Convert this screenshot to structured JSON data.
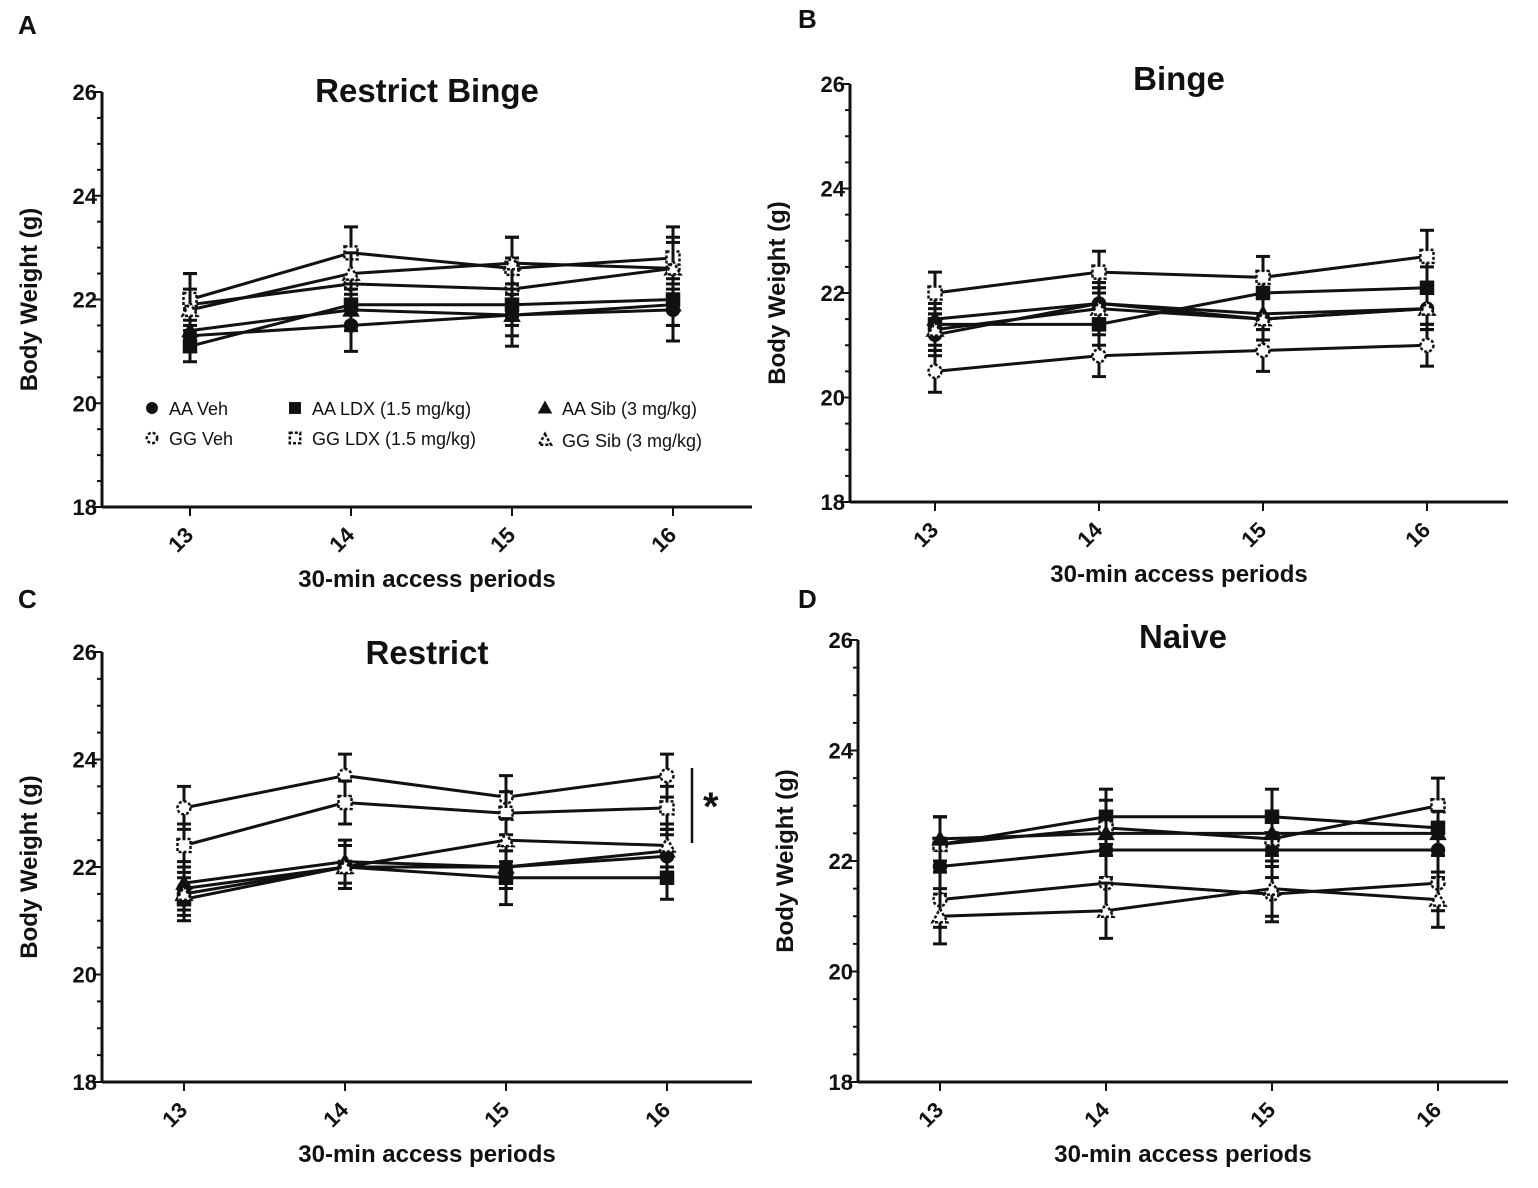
{
  "chart_data": [
    {
      "panel": "A",
      "type": "line",
      "title": "Restrict Binge",
      "xlabel": "30-min access periods",
      "ylabel": "Body Weight (g)",
      "categories": [
        "13",
        "14",
        "15",
        "16"
      ],
      "ylim": [
        18,
        26
      ],
      "yticks": [
        18,
        20,
        22,
        24,
        26
      ],
      "legend_position": "lower-center",
      "series": [
        {
          "name": "AA Veh",
          "marker": "circle",
          "fill": "black",
          "values": [
            21.3,
            21.5,
            21.7,
            21.8
          ],
          "err": [
            0.3,
            0.5,
            0.6,
            0.6
          ]
        },
        {
          "name": "GG Veh",
          "marker": "circle",
          "fill": "white",
          "values": [
            21.9,
            22.3,
            22.2,
            22.6
          ],
          "err": [
            0.6,
            0.6,
            0.6,
            0.6
          ]
        },
        {
          "name": "AA LDX (1.5 mg/kg)",
          "marker": "square",
          "fill": "black",
          "values": [
            21.1,
            21.9,
            21.9,
            22.0
          ],
          "err": [
            0.3,
            0.4,
            0.4,
            0.5
          ]
        },
        {
          "name": "GG LDX (1.5 mg/kg)",
          "marker": "square",
          "fill": "white",
          "values": [
            22.0,
            22.9,
            22.6,
            22.8
          ],
          "err": [
            0.5,
            0.5,
            0.6,
            0.6
          ]
        },
        {
          "name": "AA Sib (3 mg/kg)",
          "marker": "triangle",
          "fill": "black",
          "values": [
            21.4,
            21.8,
            21.7,
            21.9
          ],
          "err": [
            0.4,
            0.4,
            0.4,
            0.4
          ]
        },
        {
          "name": "GG Sib (3 mg/kg)",
          "marker": "triangle",
          "fill": "white",
          "values": [
            21.8,
            22.5,
            22.7,
            22.6
          ],
          "err": [
            0.4,
            0.4,
            0.5,
            0.5
          ]
        }
      ]
    },
    {
      "panel": "B",
      "type": "line",
      "title": "Binge",
      "xlabel": "30-min access periods",
      "ylabel": "Body Weight (g)",
      "categories": [
        "13",
        "14",
        "15",
        "16"
      ],
      "ylim": [
        18,
        26
      ],
      "yticks": [
        18,
        20,
        22,
        24,
        26
      ],
      "series": [
        {
          "name": "AA Veh",
          "marker": "circle",
          "fill": "black",
          "values": [
            21.2,
            21.8,
            21.5,
            21.7
          ],
          "err": [
            0.4,
            0.4,
            0.4,
            0.4
          ]
        },
        {
          "name": "GG Veh",
          "marker": "circle",
          "fill": "white",
          "values": [
            20.5,
            20.8,
            20.9,
            21.0
          ],
          "err": [
            0.4,
            0.4,
            0.4,
            0.4
          ]
        },
        {
          "name": "AA LDX (1.5 mg/kg)",
          "marker": "square",
          "fill": "black",
          "values": [
            21.4,
            21.4,
            22.0,
            22.1
          ],
          "err": [
            0.4,
            0.4,
            0.4,
            0.4
          ]
        },
        {
          "name": "GG LDX (1.5 mg/kg)",
          "marker": "square",
          "fill": "white",
          "values": [
            22.0,
            22.4,
            22.3,
            22.7
          ],
          "err": [
            0.4,
            0.4,
            0.4,
            0.5
          ]
        },
        {
          "name": "AA Sib (3 mg/kg)",
          "marker": "triangle",
          "fill": "black",
          "values": [
            21.5,
            21.8,
            21.6,
            21.7
          ],
          "err": [
            0.3,
            0.3,
            0.3,
            0.3
          ]
        },
        {
          "name": "GG Sib (3 mg/kg)",
          "marker": "triangle",
          "fill": "white",
          "values": [
            21.3,
            21.7,
            21.5,
            21.7
          ],
          "err": [
            0.4,
            0.4,
            0.4,
            0.4
          ]
        }
      ]
    },
    {
      "panel": "C",
      "type": "line",
      "title": "Restrict",
      "xlabel": "30-min access periods",
      "ylabel": "Body Weight (g)",
      "categories": [
        "13",
        "14",
        "15",
        "16"
      ],
      "ylim": [
        18,
        26
      ],
      "yticks": [
        18,
        20,
        22,
        24,
        26
      ],
      "annotation": "*",
      "series": [
        {
          "name": "AA Veh",
          "marker": "circle",
          "fill": "black",
          "values": [
            21.6,
            22.0,
            22.0,
            22.2
          ],
          "err": [
            0.4,
            0.4,
            0.4,
            0.4
          ]
        },
        {
          "name": "GG Veh",
          "marker": "circle",
          "fill": "white",
          "values": [
            23.1,
            23.7,
            23.3,
            23.7
          ],
          "err": [
            0.4,
            0.4,
            0.4,
            0.4
          ]
        },
        {
          "name": "AA LDX (1.5 mg/kg)",
          "marker": "square",
          "fill": "black",
          "values": [
            21.4,
            22.0,
            21.8,
            21.8
          ],
          "err": [
            0.4,
            0.4,
            0.5,
            0.4
          ]
        },
        {
          "name": "GG LDX (1.5 mg/kg)",
          "marker": "square",
          "fill": "white",
          "values": [
            22.4,
            23.2,
            23.0,
            23.1
          ],
          "err": [
            0.4,
            0.4,
            0.4,
            0.4
          ]
        },
        {
          "name": "AA Sib (3 mg/kg)",
          "marker": "triangle",
          "fill": "black",
          "values": [
            21.7,
            22.1,
            22.0,
            22.3
          ],
          "err": [
            0.4,
            0.4,
            0.4,
            0.4
          ]
        },
        {
          "name": "GG Sib (3 mg/kg)",
          "marker": "triangle",
          "fill": "white",
          "values": [
            21.5,
            22.0,
            22.5,
            22.4
          ],
          "err": [
            0.4,
            0.4,
            0.4,
            0.4
          ]
        }
      ]
    },
    {
      "panel": "D",
      "type": "line",
      "title": "Naive",
      "xlabel": "30-min access periods",
      "ylabel": "Body Weight (g)",
      "categories": [
        "13",
        "14",
        "15",
        "16"
      ],
      "ylim": [
        18,
        26
      ],
      "yticks": [
        18,
        20,
        22,
        24,
        26
      ],
      "series": [
        {
          "name": "AA Veh",
          "marker": "circle",
          "fill": "black",
          "values": [
            21.9,
            22.2,
            22.2,
            22.2
          ],
          "err": [
            0.5,
            0.5,
            0.5,
            0.5
          ]
        },
        {
          "name": "GG Veh",
          "marker": "circle",
          "fill": "white",
          "values": [
            21.3,
            21.6,
            21.4,
            21.6
          ],
          "err": [
            0.5,
            0.5,
            0.5,
            0.5
          ]
        },
        {
          "name": "AA LDX (1.5 mg/kg)",
          "marker": "square",
          "fill": "black",
          "values": [
            22.3,
            22.8,
            22.8,
            22.6
          ],
          "err": [
            0.5,
            0.5,
            0.5,
            0.5
          ]
        },
        {
          "name": "GG LDX (1.5 mg/kg)",
          "marker": "square",
          "fill": "white",
          "values": [
            22.3,
            22.6,
            22.4,
            23.0
          ],
          "err": [
            0.5,
            0.5,
            0.5,
            0.5
          ]
        },
        {
          "name": "AA Sib (3 mg/kg)",
          "marker": "triangle",
          "fill": "black",
          "values": [
            22.4,
            22.5,
            22.5,
            22.5
          ],
          "err": [
            0.4,
            0.4,
            0.4,
            0.4
          ]
        },
        {
          "name": "GG Sib (3 mg/kg)",
          "marker": "triangle",
          "fill": "white",
          "values": [
            21.0,
            21.1,
            21.5,
            21.3
          ],
          "err": [
            0.5,
            0.5,
            0.5,
            0.5
          ]
        }
      ]
    }
  ]
}
